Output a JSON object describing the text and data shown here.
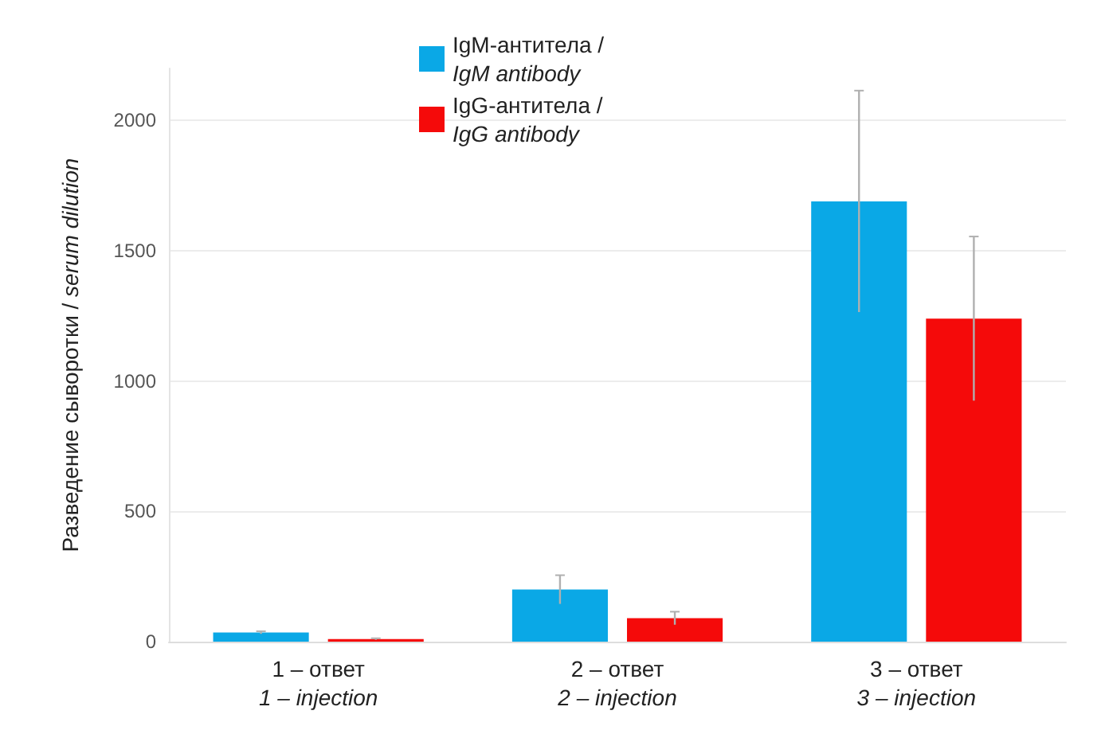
{
  "chart_data": {
    "type": "bar",
    "ylabel": "Разведение сыворотки / serum dilution",
    "categories": [
      "1 – ответ\n1 – injection",
      "2 – ответ\n2 – injection",
      "3 – ответ\n3 – injection"
    ],
    "series": [
      {
        "name": "IgM-антитела /\nIgM antibody",
        "color": "#0aa8e6",
        "values": [
          35,
          200,
          1690
        ],
        "errors": [
          5,
          55,
          425
        ]
      },
      {
        "name": "IgG-антитела /\nIgG antibody",
        "color": "#f50a0a",
        "values": [
          10,
          90,
          1240
        ],
        "errors": [
          3,
          25,
          315
        ]
      }
    ],
    "ylim": [
      0,
      2200
    ],
    "yticks": [
      0,
      500,
      1000,
      1500,
      2000
    ],
    "grid": "y",
    "legend": "top"
  }
}
